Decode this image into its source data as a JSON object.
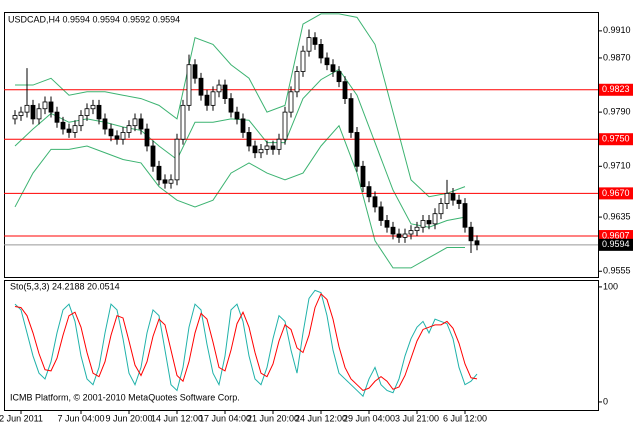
{
  "chart_data": [
    {
      "type": "candlestick",
      "title": "USDCAD,H4  0.9594 0.9594 0.9592 0.9594",
      "categories": [
        null,
        "2 Jun 2011",
        null,
        null,
        null,
        null,
        null,
        null,
        null,
        null,
        null,
        "7 Jun 04:00",
        null,
        null,
        null,
        null,
        null,
        null,
        null,
        "9 Jun 20:00",
        null,
        null,
        null,
        null,
        null,
        null,
        null,
        "14 Jun 12:00",
        null,
        null,
        null,
        null,
        null,
        null,
        null,
        "17 Jun 04:00",
        null,
        null,
        null,
        null,
        null,
        null,
        null,
        "21 Jun 20:00",
        null,
        null,
        null,
        null,
        null,
        null,
        null,
        "24 Jun 12:00",
        null,
        null,
        null,
        null,
        null,
        null,
        null,
        "29 Jun 04:00",
        null,
        null,
        null,
        null,
        null,
        null,
        null,
        "3 Jul 21:00",
        null,
        null,
        null,
        null,
        null,
        null,
        null,
        "6 Jul 12:00",
        null,
        null
      ],
      "open": [
        0.978,
        0.9785,
        0.979,
        0.98,
        0.978,
        0.9795,
        0.9805,
        0.979,
        0.9775,
        0.9765,
        0.976,
        0.977,
        0.9785,
        0.9795,
        0.98,
        0.978,
        0.9765,
        0.9755,
        0.975,
        0.976,
        0.977,
        0.978,
        0.9765,
        0.974,
        0.971,
        0.969,
        0.9685,
        0.969,
        0.975,
        0.98,
        0.986,
        0.984,
        0.9815,
        0.98,
        0.982,
        0.983,
        0.981,
        0.979,
        0.978,
        0.976,
        0.974,
        0.973,
        0.9735,
        0.974,
        0.9735,
        0.975,
        0.979,
        0.982,
        0.985,
        0.988,
        0.99,
        0.989,
        0.987,
        0.986,
        0.985,
        0.9835,
        0.981,
        0.976,
        0.971,
        0.968,
        0.9665,
        0.965,
        0.963,
        0.962,
        0.961,
        0.9605,
        0.961,
        0.9615,
        0.962,
        0.963,
        0.9625,
        0.964,
        0.9655,
        0.967,
        0.966,
        0.9655,
        0.962,
        0.96
      ],
      "high": [
        0.9793,
        0.9798,
        0.9855,
        0.9808,
        0.9803,
        0.9813,
        0.9813,
        0.9798,
        0.9783,
        0.9773,
        0.9778,
        0.9793,
        0.9803,
        0.9808,
        0.9808,
        0.9788,
        0.9773,
        0.9763,
        0.9768,
        0.9778,
        0.9788,
        0.9788,
        0.9773,
        0.9748,
        0.9718,
        0.9698,
        0.9698,
        0.9758,
        0.9808,
        0.9875,
        0.9868,
        0.9848,
        0.9823,
        0.9828,
        0.9838,
        0.9838,
        0.9818,
        0.9798,
        0.9788,
        0.9768,
        0.9748,
        0.9743,
        0.9748,
        0.9748,
        0.9758,
        0.9798,
        0.9828,
        0.9858,
        0.9888,
        0.9912,
        0.9908,
        0.9898,
        0.9878,
        0.9868,
        0.9858,
        0.9843,
        0.9818,
        0.9768,
        0.9718,
        0.9688,
        0.9673,
        0.9658,
        0.9638,
        0.9628,
        0.9618,
        0.9618,
        0.9623,
        0.9628,
        0.9638,
        0.9638,
        0.9648,
        0.9663,
        0.969,
        0.9678,
        0.9668,
        0.9663,
        0.9628,
        0.9608
      ],
      "low": [
        0.9772,
        0.9777,
        0.9782,
        0.9772,
        0.9772,
        0.9787,
        0.9782,
        0.9767,
        0.9757,
        0.9752,
        0.9752,
        0.9762,
        0.9777,
        0.9787,
        0.9772,
        0.9757,
        0.9747,
        0.9742,
        0.9742,
        0.9752,
        0.9762,
        0.9757,
        0.9732,
        0.9702,
        0.9682,
        0.9677,
        0.9677,
        0.9682,
        0.9742,
        0.9792,
        0.9832,
        0.9807,
        0.9792,
        0.9792,
        0.9812,
        0.9802,
        0.9782,
        0.9772,
        0.9752,
        0.9732,
        0.9722,
        0.9722,
        0.9727,
        0.9727,
        0.9727,
        0.9742,
        0.9782,
        0.9812,
        0.9842,
        0.9872,
        0.9882,
        0.9862,
        0.9852,
        0.9842,
        0.9827,
        0.9802,
        0.9752,
        0.9702,
        0.9672,
        0.9657,
        0.9642,
        0.9622,
        0.9612,
        0.9602,
        0.9597,
        0.9597,
        0.9602,
        0.9607,
        0.9612,
        0.9617,
        0.9617,
        0.9632,
        0.9647,
        0.9652,
        0.9647,
        0.9612,
        0.9582,
        0.9586
      ],
      "close": [
        0.9785,
        0.979,
        0.98,
        0.978,
        0.9795,
        0.9805,
        0.979,
        0.9775,
        0.9765,
        0.976,
        0.977,
        0.9785,
        0.9795,
        0.98,
        0.978,
        0.9765,
        0.9755,
        0.975,
        0.976,
        0.977,
        0.978,
        0.9765,
        0.974,
        0.971,
        0.969,
        0.9685,
        0.969,
        0.975,
        0.98,
        0.986,
        0.984,
        0.9815,
        0.98,
        0.982,
        0.983,
        0.981,
        0.979,
        0.978,
        0.976,
        0.974,
        0.973,
        0.9735,
        0.974,
        0.9735,
        0.975,
        0.979,
        0.982,
        0.985,
        0.988,
        0.99,
        0.989,
        0.987,
        0.986,
        0.985,
        0.9835,
        0.981,
        0.976,
        0.971,
        0.968,
        0.9665,
        0.965,
        0.963,
        0.962,
        0.961,
        0.9605,
        0.961,
        0.9615,
        0.962,
        0.963,
        0.9625,
        0.964,
        0.9655,
        0.967,
        0.966,
        0.9655,
        0.962,
        0.96,
        0.9594
      ],
      "bull_color": "#ffffff",
      "bear_color": "#000000",
      "band_x": [
        0,
        3,
        6,
        9,
        12,
        15,
        18,
        21,
        24,
        27,
        30,
        33,
        36,
        39,
        42,
        45,
        48,
        51,
        54,
        57,
        60,
        63,
        66,
        69,
        72,
        75
      ],
      "bands": [
        {
          "color": "#3cb371",
          "values": [
            0.983,
            0.983,
            0.984,
            0.9815,
            0.982,
            0.982,
            0.9815,
            0.981,
            0.98,
            0.978,
            0.99,
            0.989,
            0.986,
            0.984,
            0.979,
            0.98,
            0.992,
            0.9935,
            0.9935,
            0.993,
            0.989,
            0.979,
            0.969,
            0.9665,
            0.967,
            0.968
          ]
        },
        {
          "color": "#3cb371",
          "values": [
            0.974,
            0.9765,
            0.9788,
            0.9775,
            0.978,
            0.9775,
            0.9768,
            0.9763,
            0.974,
            0.972,
            0.9775,
            0.9775,
            0.978,
            0.9778,
            0.9745,
            0.9745,
            0.981,
            0.9838,
            0.9853,
            0.9815,
            0.9745,
            0.9675,
            0.9625,
            0.962,
            0.963,
            0.9635
          ]
        },
        {
          "color": "#3cb371",
          "values": [
            0.965,
            0.97,
            0.9735,
            0.9735,
            0.974,
            0.973,
            0.972,
            0.9715,
            0.968,
            0.966,
            0.965,
            0.966,
            0.97,
            0.9715,
            0.97,
            0.969,
            0.97,
            0.974,
            0.977,
            0.97,
            0.96,
            0.956,
            0.956,
            0.9575,
            0.959,
            0.959
          ]
        }
      ],
      "levels": [
        {
          "value": 0.9823,
          "label": "0.9823"
        },
        {
          "value": 0.975,
          "label": "0.9750"
        },
        {
          "value": 0.967,
          "label": "0.9670"
        },
        {
          "value": 0.9607,
          "label": "0.9607"
        }
      ],
      "level_color": "#ff0000",
      "last": {
        "value": 0.9594,
        "label": "0.9594"
      },
      "ylim": [
        0.9548,
        0.9929
      ],
      "yticks": [
        {
          "value": 0.991,
          "label": "0.9910"
        },
        {
          "value": 0.987,
          "label": "0.9870"
        },
        {
          "value": 0.979,
          "label": "0.9790"
        },
        {
          "value": 0.971,
          "label": "0.9710"
        },
        {
          "value": 0.9635,
          "label": "0.9635"
        },
        {
          "value": 0.9555,
          "label": "0.9555"
        }
      ]
    },
    {
      "type": "line",
      "title": "Sto(5,3,3) 24.2188 20.0514",
      "series": [
        {
          "color": "#20b2aa",
          "values": [
            85,
            80,
            60,
            40,
            25,
            20,
            35,
            60,
            80,
            85,
            70,
            40,
            20,
            15,
            30,
            60,
            85,
            80,
            55,
            25,
            15,
            30,
            60,
            80,
            75,
            45,
            15,
            10,
            30,
            65,
            85,
            80,
            50,
            25,
            15,
            40,
            80,
            85,
            70,
            40,
            20,
            15,
            30,
            55,
            75,
            70,
            45,
            25,
            60,
            90,
            97,
            95,
            75,
            45,
            25,
            20,
            15,
            10,
            5,
            20,
            30,
            15,
            10,
            8,
            20,
            40,
            55,
            65,
            70,
            60,
            72,
            70,
            68,
            55,
            30,
            15,
            18,
            24.2188
          ]
        },
        {
          "color": "#ff0000",
          "values": [
            83,
            82,
            75,
            60,
            42,
            28,
            27,
            38,
            58,
            75,
            78,
            65,
            43,
            25,
            22,
            35,
            58,
            75,
            73,
            53,
            32,
            23,
            35,
            57,
            72,
            67,
            45,
            23,
            18,
            35,
            60,
            77,
            72,
            52,
            30,
            27,
            45,
            68,
            78,
            65,
            43,
            25,
            22,
            33,
            53,
            67,
            63,
            47,
            43,
            58,
            82,
            94,
            89,
            72,
            48,
            30,
            20,
            15,
            10,
            12,
            18,
            22,
            18,
            11,
            13,
            23,
            38,
            53,
            63,
            65,
            67,
            67,
            70,
            64,
            51,
            33,
            21,
            20.0514
          ]
        }
      ],
      "ylim": [
        -7,
        106
      ],
      "yticks": [
        100,
        0
      ],
      "annotation": "ICMB Platform, © 2001-2010 MetaQuotes Software Corp."
    }
  ]
}
